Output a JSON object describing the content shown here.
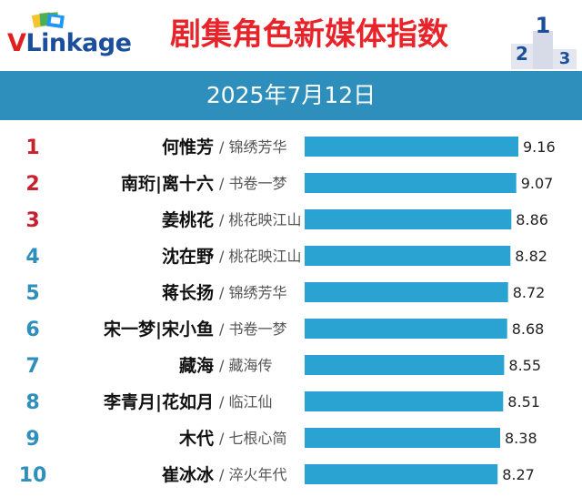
{
  "header": {
    "logo_v": "V",
    "logo_rest": "Linkage",
    "title": "剧集角色新媒体指数",
    "logo_icon": "cards-logo-icon",
    "podium_icon": "podium-123-icon",
    "podium_digits": [
      "2",
      "1",
      "3"
    ]
  },
  "date": "2025年7月12日",
  "colors": {
    "bar": "#2aa3d2",
    "title": "#e8242a",
    "rank_red": "#c8202c",
    "rank_blue": "#2e8fbd",
    "date_bar": "#2e8fbd"
  },
  "separator": "/",
  "chart_data": {
    "type": "bar",
    "orientation": "horizontal",
    "xlim": [
      0,
      9.16
    ],
    "grid": false,
    "rows": [
      {
        "rank": "1",
        "name": "何惟芳",
        "show": "锦绣芳华",
        "value": 9.16
      },
      {
        "rank": "2",
        "name": "南珩|离十六",
        "show": "书卷一梦",
        "value": 9.07
      },
      {
        "rank": "3",
        "name": "姜桃花",
        "show": "桃花映江山",
        "value": 8.86
      },
      {
        "rank": "4",
        "name": "沈在野",
        "show": "桃花映江山",
        "value": 8.82
      },
      {
        "rank": "5",
        "name": "蒋长扬",
        "show": "锦绣芳华",
        "value": 8.72
      },
      {
        "rank": "6",
        "name": "宋一梦|宋小鱼",
        "show": "书卷一梦",
        "value": 8.68
      },
      {
        "rank": "7",
        "name": "藏海",
        "show": "藏海传",
        "value": 8.55
      },
      {
        "rank": "8",
        "name": "李青月|花如月",
        "show": "临江仙",
        "value": 8.51
      },
      {
        "rank": "9",
        "name": "木代",
        "show": "七根心简",
        "value": 8.38
      },
      {
        "rank": "10",
        "name": "崔冰冰",
        "show": "淬火年代",
        "value": 8.27
      }
    ]
  }
}
